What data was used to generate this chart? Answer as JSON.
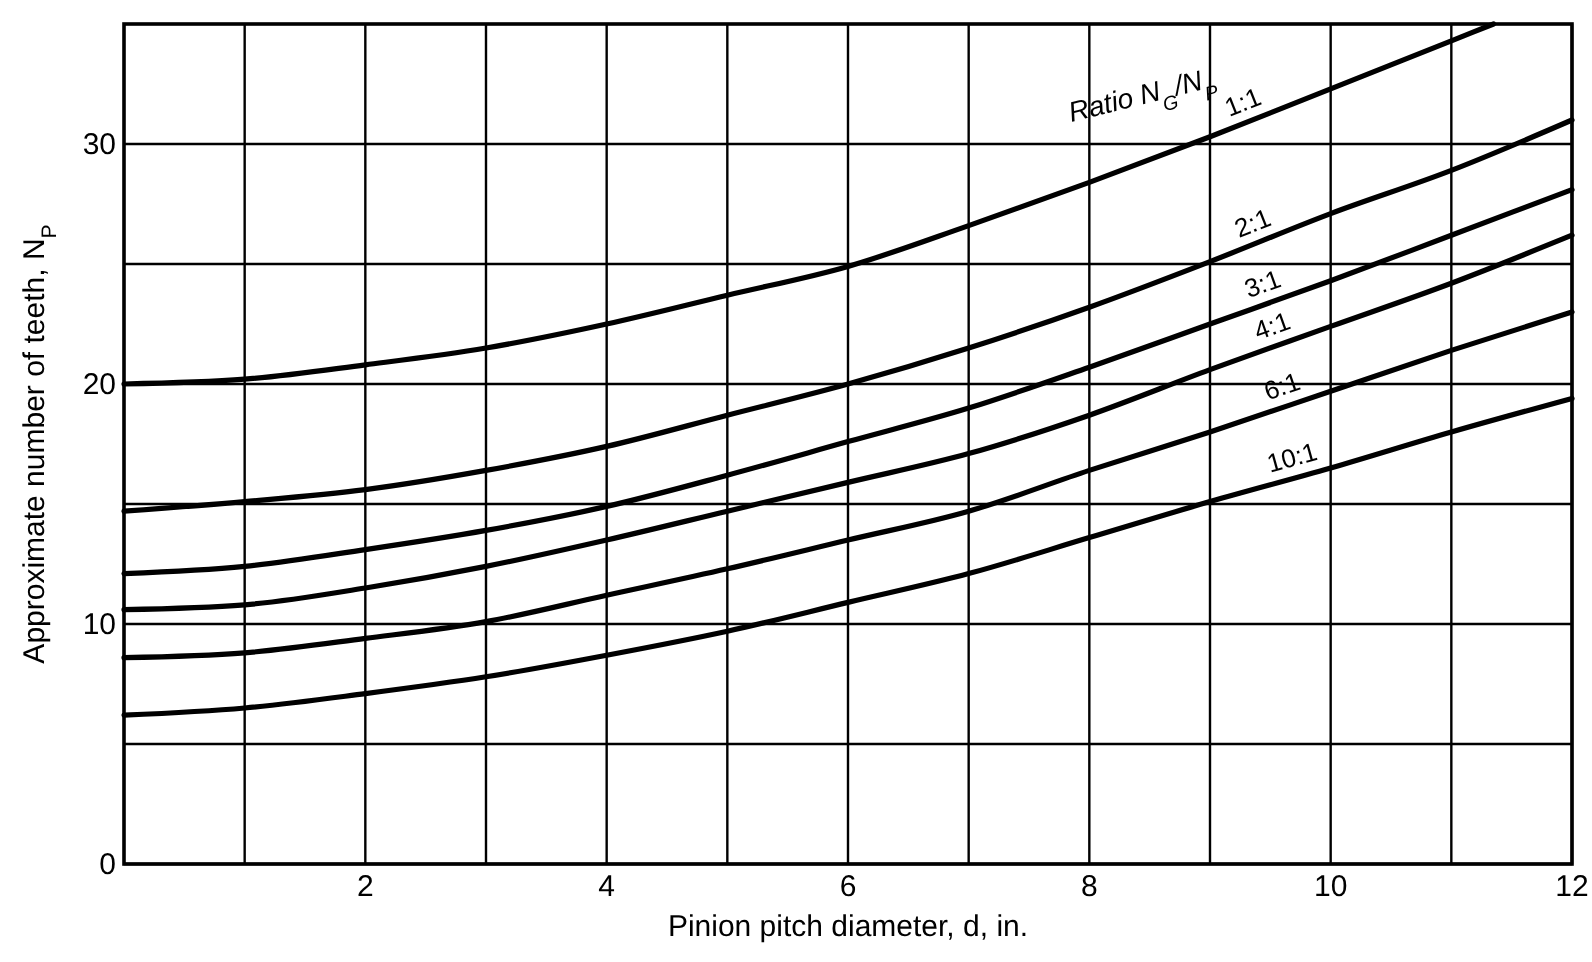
{
  "chart_data": {
    "type": "line",
    "xlabel": "Pinion pitch diameter, d, in.",
    "ylabel": "Approximate number of teeth, N$_{P}$",
    "annotations": [
      "Ratio  N$_{G}$/N$_{P}$"
    ],
    "x": [
      0,
      1,
      2,
      3,
      4,
      5,
      6,
      7,
      8,
      9,
      10,
      11,
      12
    ],
    "series": [
      {
        "name": "1:1",
        "color": "#000000",
        "x": [
          0,
          1,
          2,
          3,
          4,
          5,
          6,
          7,
          8,
          9,
          10,
          11,
          11.35
        ],
        "values": [
          20.0,
          20.2,
          20.8,
          21.5,
          22.5,
          23.7,
          24.9,
          26.6,
          28.4,
          30.3,
          32.3,
          34.3,
          35
        ]
      },
      {
        "name": "2:1",
        "color": "#000000",
        "values": [
          14.7,
          15.1,
          15.6,
          16.4,
          17.4,
          18.7,
          20.0,
          21.5,
          23.2,
          25.1,
          27.1,
          28.9,
          31.0
        ]
      },
      {
        "name": "3:1",
        "color": "#000000",
        "values": [
          12.1,
          12.4,
          13.1,
          13.9,
          14.9,
          16.2,
          17.6,
          19.0,
          20.7,
          22.5,
          24.3,
          26.2,
          28.1
        ]
      },
      {
        "name": "4:1",
        "color": "#000000",
        "values": [
          10.6,
          10.8,
          11.5,
          12.4,
          13.5,
          14.7,
          15.9,
          17.1,
          18.7,
          20.6,
          22.4,
          24.2,
          26.2
        ]
      },
      {
        "name": "6:1",
        "color": "#000000",
        "values": [
          8.6,
          8.8,
          9.4,
          10.1,
          11.2,
          12.3,
          13.5,
          14.7,
          16.4,
          18.0,
          19.7,
          21.4,
          23.0
        ]
      },
      {
        "name": "10:1",
        "color": "#000000",
        "values": [
          6.2,
          6.5,
          7.1,
          7.8,
          8.7,
          9.7,
          10.9,
          12.1,
          13.6,
          15.1,
          16.5,
          18.0,
          19.4
        ]
      }
    ],
    "xlim": [
      0,
      12
    ],
    "ylim": [
      0,
      35
    ],
    "xticks": [
      {
        "value": 1,
        "label": null
      },
      2,
      {
        "value": 3,
        "label": null
      },
      4,
      {
        "value": 5,
        "label": null
      },
      6,
      {
        "value": 7,
        "label": null
      },
      8,
      {
        "value": 9,
        "label": null
      },
      10,
      {
        "value": 11,
        "label": null
      },
      12
    ],
    "yticks": [
      0,
      {
        "value": 5,
        "label": null
      },
      10,
      {
        "value": 15,
        "label": null
      },
      20,
      {
        "value": 25,
        "label": null
      },
      30
    ],
    "grid": true,
    "marker": "none",
    "line_style": "solid"
  }
}
